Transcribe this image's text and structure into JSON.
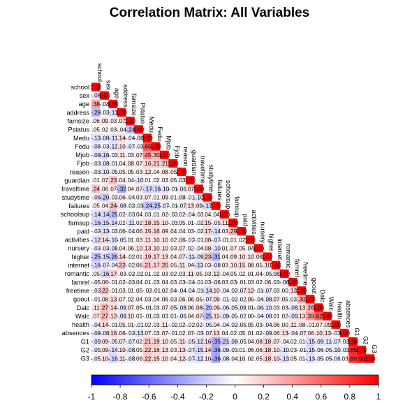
{
  "chart_data": {
    "type": "heatmap",
    "title": "Correlation Matrix: All Variables",
    "subtitle": "",
    "xlabel": "",
    "ylabel": "",
    "layout": "lower-triangle",
    "variables": [
      "school",
      "sex",
      "age",
      "address",
      "famsize",
      "Pstatus",
      "Medu",
      "Fedu",
      "Mjob",
      "Fjob",
      "reason",
      "guardian",
      "traveltime",
      "studytime",
      "failures",
      "schoolsup",
      "famsup",
      "paid",
      "activities",
      "nursery",
      "higher",
      "internet",
      "romantic",
      "famrel",
      "freetime",
      "goout",
      "Dalc",
      "Walc",
      "health",
      "absences",
      "G1",
      "G2",
      "G3"
    ],
    "values": [
      [
        1.0
      ],
      [
        -0.08,
        1.0
      ],
      [
        0.38,
        -0.04,
        1.0
      ],
      [
        -0.28,
        -0.03,
        -0.11,
        1.0
      ],
      [
        0.06,
        0.09,
        0.03,
        0.07,
        1.0
      ],
      [
        0.05,
        0.02,
        0.03,
        -0.04,
        -0.24,
        1.0
      ],
      [
        -0.13,
        -0.08,
        -0.11,
        0.14,
        -0.04,
        -0.06,
        1.0
      ],
      [
        -0.08,
        -0.03,
        -0.12,
        0.1,
        -0.07,
        -0.03,
        0.65,
        1.0
      ],
      [
        -0.09,
        -0.16,
        -0.03,
        0.11,
        0.03,
        0.07,
        0.45,
        0.3,
        1.0
      ],
      [
        -0.03,
        -0.08,
        -0.01,
        0.04,
        0.08,
        0.07,
        0.16,
        0.21,
        0.21,
        1.0
      ],
      [
        -0.03,
        -0.1,
        -0.05,
        0.05,
        0.05,
        0.03,
        0.12,
        0.04,
        0.08,
        0.05,
        1.0
      ],
      [
        0.01,
        0.07,
        0.23,
        0.04,
        0.04,
        -0.1,
        0.01,
        0.02,
        0.03,
        0.05,
        0.03,
        1.0
      ],
      [
        0.24,
        0.06,
        0.07,
        -0.32,
        0.04,
        0.07,
        -0.17,
        -0.16,
        -0.1,
        -0.01,
        -0.06,
        0.07,
        1.0
      ],
      [
        -0.06,
        -0.2,
        -0.03,
        0.06,
        -0.04,
        0.03,
        0.07,
        0.01,
        0.09,
        0.01,
        0.08,
        -0.01,
        -0.1,
        1.0
      ],
      [
        0.05,
        0.04,
        0.24,
        -0.08,
        -0.02,
        -0.03,
        -0.24,
        -0.25,
        -0.07,
        -0.01,
        -0.07,
        0.13,
        0.09,
        -0.17,
        1.0
      ],
      [
        -0.14,
        -0.14,
        -0.25,
        0.02,
        -0.03,
        0.04,
        0.03,
        0.01,
        0.02,
        -0.03,
        0.02,
        -0.04,
        -0.03,
        0.04,
        0.04,
        1.0
      ],
      [
        -0.16,
        -0.15,
        -0.14,
        0.02,
        -0.11,
        0.02,
        0.18,
        0.15,
        0.1,
        -0.03,
        0.05,
        0.01,
        -0.02,
        0.15,
        -0.05,
        0.11,
        1.0
      ],
      [
        -0.02,
        -0.13,
        -0.03,
        0.06,
        -0.04,
        0.06,
        0.15,
        0.16,
        0.09,
        0.04,
        0.04,
        0.03,
        -0.02,
        0.17,
        -0.14,
        0.03,
        0.29,
        1.0
      ],
      [
        -0.12,
        0.14,
        -0.1,
        -0.05,
        0.01,
        0.03,
        0.11,
        0.1,
        0.1,
        0.02,
        0.06,
        -0.02,
        -0.01,
        0.08,
        -0.07,
        -0.01,
        0.01,
        0.02,
        1.0
      ],
      [
        -0.03,
        -0.03,
        -0.08,
        0.04,
        0.06,
        0.1,
        0.13,
        0.1,
        0.1,
        0.03,
        0.07,
        0.02,
        -0.04,
        0.08,
        -0.1,
        0.01,
        0.07,
        0.05,
        0.04,
        1.0
      ],
      [
        -0.25,
        -0.15,
        -0.26,
        0.14,
        -0.02,
        0.01,
        0.19,
        0.17,
        0.13,
        0.04,
        0.07,
        -0.11,
        -0.09,
        0.23,
        -0.31,
        0.04,
        0.09,
        0.1,
        0.1,
        0.06,
        1.0
      ],
      [
        -0.16,
        -0.07,
        -0.04,
        0.22,
        -0.02,
        0.06,
        0.21,
        0.17,
        0.2,
        0.05,
        0.11,
        0.04,
        -0.13,
        0.03,
        -0.08,
        0.03,
        0.1,
        0.15,
        0.08,
        0.05,
        0.1,
        1.0
      ],
      [
        0.05,
        -0.16,
        0.17,
        -0.03,
        -0.02,
        -0.02,
        0.01,
        0.02,
        0.03,
        0.02,
        0.03,
        0.11,
        0.05,
        0.03,
        0.12,
        -0.04,
        0.05,
        0.02,
        0.01,
        0.04,
        -0.05,
        0.08,
        1.0
      ],
      [
        -0.05,
        0.06,
        -0.01,
        0.02,
        -0.03,
        0.04,
        0.01,
        0.03,
        0.04,
        0.03,
        0.03,
        -0.04,
        -0.01,
        0.03,
        -0.06,
        0.03,
        0.03,
        -0.01,
        0.03,
        0.02,
        0.06,
        0.03,
        -0.06,
        1.0
      ],
      [
        -0.03,
        0.22,
        -0.01,
        0.03,
        0.01,
        0.05,
        -0.02,
        -0.01,
        0.02,
        0.04,
        -0.04,
        -0.04,
        -0.01,
        -0.14,
        0.1,
        -0.04,
        -0.02,
        -0.07,
        0.12,
        -0.01,
        -0.07,
        0.03,
        0.0,
        0.13,
        1.0
      ],
      [
        -0.01,
        0.08,
        0.13,
        0.07,
        0.02,
        0.04,
        0.03,
        0.04,
        0.06,
        0.03,
        0.06,
        0.06,
        0.05,
        -0.07,
        0.09,
        -0.01,
        -0.02,
        -0.02,
        0.05,
        -0.04,
        -0.08,
        0.07,
        0.05,
        0.03,
        0.3,
        1.0
      ],
      [
        0.11,
        0.27,
        0.14,
        -0.09,
        0.07,
        0.05,
        -0.01,
        0.03,
        0.07,
        0.05,
        -0.08,
        0.06,
        0.08,
        -0.2,
        0.09,
        -0.06,
        -0.05,
        -0.09,
        0.01,
        -0.06,
        -0.1,
        0.03,
        0.03,
        -0.08,
        0.13,
        0.26,
        1.0
      ],
      [
        0.07,
        0.27,
        0.12,
        -0.09,
        0.1,
        0.01,
        -0.01,
        0.03,
        0.03,
        0.01,
        -0.06,
        0.04,
        0.07,
        -0.25,
        0.11,
        -0.09,
        -0.05,
        -0.02,
        0.0,
        -0.04,
        -0.08,
        0.01,
        0.02,
        -0.09,
        0.13,
        0.39,
        0.62,
        1.0
      ],
      [
        -0.04,
        0.14,
        -0.01,
        0.05,
        0.01,
        -0.01,
        0.02,
        0.03,
        0.11,
        -0.02,
        0.02,
        -0.02,
        0.02,
        -0.05,
        0.04,
        -0.04,
        -0.02,
        -0.05,
        0.05,
        0.03,
        -0.04,
        0.06,
        0.0,
        0.11,
        0.08,
        -0.01,
        0.07,
        0.09,
        1.0
      ],
      [
        -0.09,
        -0.08,
        0.16,
        0.06,
        -0.02,
        -0.13,
        0.07,
        0.03,
        0.07,
        -0.01,
        0.02,
        0.07,
        -0.03,
        -0.07,
        0.13,
        0.04,
        0.02,
        0.05,
        0.01,
        0.02,
        -0.09,
        0.06,
        0.13,
        -0.04,
        -0.07,
        0.06,
        0.1,
        0.13,
        -0.03,
        1.0
      ],
      [
        -0.09,
        0.09,
        -0.05,
        0.07,
        -0.07,
        0.02,
        0.21,
        0.19,
        0.1,
        0.05,
        0.11,
        -0.05,
        -0.12,
        0.16,
        -0.35,
        -0.21,
        -0.08,
        -0.05,
        0.04,
        0.08,
        0.18,
        0.07,
        -0.04,
        0.02,
        0.01,
        -0.15,
        -0.09,
        -0.11,
        -0.07,
        -0.03,
        1.0
      ],
      [
        -0.05,
        0.09,
        -0.14,
        0.1,
        -0.08,
        0.05,
        0.22,
        0.16,
        0.13,
        0.03,
        0.13,
        -0.07,
        -0.15,
        0.14,
        -0.36,
        -0.09,
        -0.03,
        0.01,
        0.06,
        0.06,
        0.18,
        0.1,
        -0.1,
        0.03,
        -0.01,
        -0.15,
        -0.06,
        -0.05,
        -0.1,
        -0.03,
        0.85,
        1.0
      ],
      [
        -0.05,
        0.1,
        -0.16,
        0.11,
        -0.08,
        0.06,
        0.22,
        0.15,
        0.1,
        0.04,
        0.12,
        -0.07,
        -0.12,
        0.1,
        -0.36,
        -0.08,
        -0.04,
        0.1,
        0.02,
        0.05,
        0.18,
        0.1,
        -0.13,
        0.05,
        0.01,
        -0.13,
        -0.05,
        -0.05,
        -0.06,
        0.03,
        0.8,
        0.9,
        1.0
      ]
    ],
    "colorbar": {
      "ticks": [
        -1,
        -0.8,
        -0.6,
        -0.4,
        -0.2,
        0,
        0.2,
        0.4,
        0.6,
        0.8,
        1
      ],
      "labels": [
        "-1",
        "-0.8",
        "-0.6",
        "-0.4",
        "-0.2",
        "0",
        "0.2",
        "0.4",
        "0.6",
        "0.8",
        "1"
      ]
    },
    "colors": {
      "negative": "#0000ff",
      "neutral": "#ffffff",
      "positive": "#ff0000"
    },
    "grid": false,
    "legend": "bottom"
  }
}
